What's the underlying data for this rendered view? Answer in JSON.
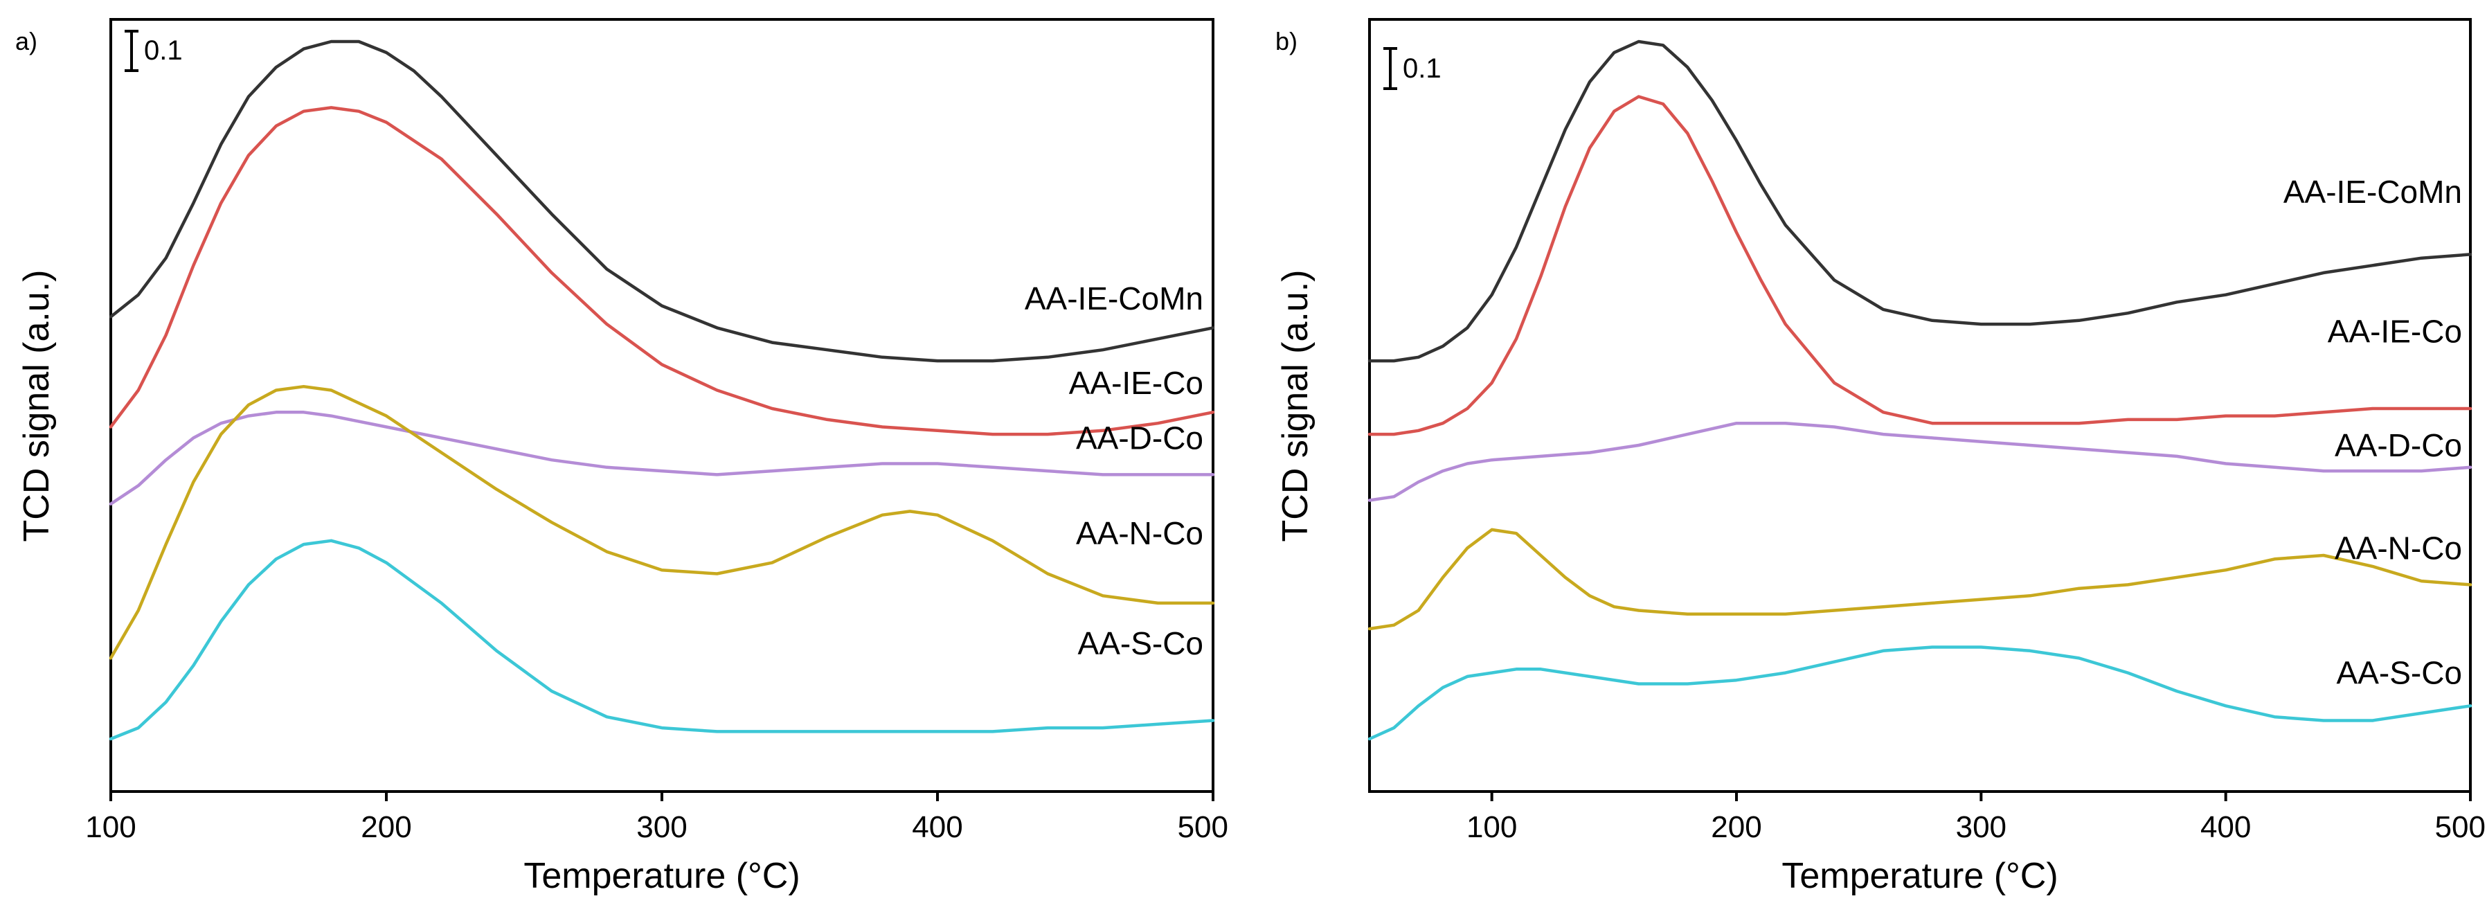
{
  "chart_data": [
    {
      "type": "line",
      "panel_label": "a)",
      "xlabel": "Temperature (°C)",
      "ylabel": "TCD signal (a.u.)",
      "xlim": [
        100,
        500
      ],
      "ylim": [
        0,
        2.0
      ],
      "xticks": [
        100,
        200,
        300,
        400,
        500
      ],
      "xtick_labels": [
        "100",
        "200",
        "300",
        "400",
        "500"
      ],
      "scale_bar": {
        "label": "0.1",
        "value": 0.1
      },
      "series": [
        {
          "name": "AA-IE-CoMn",
          "color": "#333333",
          "label_y": 1.27,
          "x": [
            100,
            110,
            120,
            130,
            140,
            150,
            160,
            170,
            180,
            190,
            200,
            210,
            220,
            240,
            260,
            280,
            300,
            320,
            340,
            360,
            380,
            400,
            420,
            440,
            460,
            480,
            500
          ],
          "y": [
            1.25,
            1.31,
            1.41,
            1.56,
            1.72,
            1.85,
            1.93,
            1.98,
            2.0,
            2.0,
            1.97,
            1.92,
            1.85,
            1.69,
            1.53,
            1.38,
            1.28,
            1.22,
            1.18,
            1.16,
            1.14,
            1.13,
            1.13,
            1.14,
            1.16,
            1.19,
            1.22
          ]
        },
        {
          "name": "AA-IE-Co",
          "color": "#d9534f",
          "label_y": 1.04,
          "x": [
            100,
            110,
            120,
            130,
            140,
            150,
            160,
            170,
            180,
            190,
            200,
            220,
            240,
            260,
            280,
            300,
            320,
            340,
            360,
            380,
            400,
            420,
            440,
            460,
            480,
            500
          ],
          "y": [
            0.95,
            1.05,
            1.2,
            1.39,
            1.56,
            1.69,
            1.77,
            1.81,
            1.82,
            1.81,
            1.78,
            1.68,
            1.53,
            1.37,
            1.23,
            1.12,
            1.05,
            1.0,
            0.97,
            0.95,
            0.94,
            0.93,
            0.93,
            0.94,
            0.96,
            0.99
          ]
        },
        {
          "name": "AA-D-Co",
          "color": "#b48cd6",
          "label_y": 0.89,
          "x": [
            100,
            110,
            120,
            130,
            140,
            150,
            160,
            170,
            180,
            200,
            220,
            240,
            260,
            280,
            300,
            320,
            340,
            360,
            380,
            400,
            420,
            440,
            460,
            480,
            500
          ],
          "y": [
            0.74,
            0.79,
            0.86,
            0.92,
            0.96,
            0.98,
            0.99,
            0.99,
            0.98,
            0.95,
            0.92,
            0.89,
            0.86,
            0.84,
            0.83,
            0.82,
            0.83,
            0.84,
            0.85,
            0.85,
            0.84,
            0.83,
            0.82,
            0.82,
            0.82
          ]
        },
        {
          "name": "AA-N-Co",
          "color": "#c8a91e",
          "label_y": 0.63,
          "x": [
            100,
            110,
            120,
            130,
            140,
            150,
            160,
            170,
            180,
            200,
            220,
            240,
            260,
            280,
            300,
            320,
            340,
            360,
            380,
            390,
            400,
            420,
            440,
            460,
            480,
            500
          ],
          "y": [
            0.32,
            0.45,
            0.63,
            0.8,
            0.93,
            1.01,
            1.05,
            1.06,
            1.05,
            0.98,
            0.88,
            0.78,
            0.69,
            0.61,
            0.56,
            0.55,
            0.58,
            0.65,
            0.71,
            0.72,
            0.71,
            0.64,
            0.55,
            0.49,
            0.47,
            0.47
          ]
        },
        {
          "name": "AA-S-Co",
          "color": "#3cc7d6",
          "label_y": 0.33,
          "x": [
            100,
            110,
            120,
            130,
            140,
            150,
            160,
            170,
            180,
            190,
            200,
            220,
            240,
            260,
            280,
            300,
            320,
            340,
            360,
            380,
            400,
            420,
            440,
            460,
            480,
            500
          ],
          "y": [
            0.1,
            0.13,
            0.2,
            0.3,
            0.42,
            0.52,
            0.59,
            0.63,
            0.64,
            0.62,
            0.58,
            0.47,
            0.34,
            0.23,
            0.16,
            0.13,
            0.12,
            0.12,
            0.12,
            0.12,
            0.12,
            0.12,
            0.13,
            0.13,
            0.14,
            0.15
          ]
        }
      ]
    },
    {
      "type": "line",
      "panel_label": "b)",
      "xlabel": "Temperature (°C)",
      "ylabel": "TCD signal (a.u.)",
      "xlim": [
        50,
        500
      ],
      "ylim": [
        0,
        2.0
      ],
      "xticks": [
        100,
        200,
        300,
        400,
        500
      ],
      "xtick_labels": [
        "100",
        "200",
        "300",
        "400",
        "500"
      ],
      "scale_bar": {
        "label": "0.1",
        "value": 0.1
      },
      "series": [
        {
          "name": "AA-IE-CoMn",
          "color": "#333333",
          "label_y": 1.56,
          "x": [
            50,
            60,
            70,
            80,
            90,
            100,
            110,
            120,
            130,
            140,
            150,
            160,
            170,
            180,
            190,
            200,
            210,
            220,
            240,
            260,
            280,
            300,
            320,
            340,
            360,
            380,
            400,
            420,
            440,
            460,
            480,
            500
          ],
          "y": [
            1.13,
            1.13,
            1.14,
            1.17,
            1.22,
            1.31,
            1.44,
            1.6,
            1.76,
            1.89,
            1.97,
            2.0,
            1.99,
            1.93,
            1.84,
            1.73,
            1.61,
            1.5,
            1.35,
            1.27,
            1.24,
            1.23,
            1.23,
            1.24,
            1.26,
            1.29,
            1.31,
            1.34,
            1.37,
            1.39,
            1.41,
            1.42
          ]
        },
        {
          "name": "AA-IE-Co",
          "color": "#d9534f",
          "label_y": 1.18,
          "x": [
            50,
            60,
            70,
            80,
            90,
            100,
            110,
            120,
            130,
            140,
            150,
            160,
            170,
            180,
            190,
            200,
            210,
            220,
            240,
            260,
            280,
            300,
            320,
            340,
            360,
            380,
            400,
            420,
            440,
            460,
            480,
            500
          ],
          "y": [
            0.93,
            0.93,
            0.94,
            0.96,
            1.0,
            1.07,
            1.19,
            1.36,
            1.55,
            1.71,
            1.81,
            1.85,
            1.83,
            1.75,
            1.62,
            1.48,
            1.35,
            1.23,
            1.07,
            0.99,
            0.96,
            0.96,
            0.96,
            0.96,
            0.97,
            0.97,
            0.98,
            0.98,
            0.99,
            1.0,
            1.0,
            1.0
          ]
        },
        {
          "name": "AA-D-Co",
          "color": "#b48cd6",
          "label_y": 0.87,
          "x": [
            50,
            60,
            70,
            80,
            90,
            100,
            120,
            140,
            160,
            180,
            200,
            220,
            240,
            260,
            280,
            300,
            320,
            340,
            360,
            380,
            400,
            420,
            440,
            460,
            480,
            500
          ],
          "y": [
            0.75,
            0.76,
            0.8,
            0.83,
            0.85,
            0.86,
            0.87,
            0.88,
            0.9,
            0.93,
            0.96,
            0.96,
            0.95,
            0.93,
            0.92,
            0.91,
            0.9,
            0.89,
            0.88,
            0.87,
            0.85,
            0.84,
            0.83,
            0.83,
            0.83,
            0.84
          ]
        },
        {
          "name": "AA-N-Co",
          "color": "#c8a91e",
          "label_y": 0.59,
          "x": [
            50,
            60,
            70,
            80,
            90,
            100,
            110,
            120,
            130,
            140,
            150,
            160,
            180,
            200,
            220,
            240,
            260,
            280,
            300,
            320,
            340,
            360,
            380,
            400,
            420,
            440,
            460,
            480,
            500
          ],
          "y": [
            0.4,
            0.41,
            0.45,
            0.54,
            0.62,
            0.67,
            0.66,
            0.6,
            0.54,
            0.49,
            0.46,
            0.45,
            0.44,
            0.44,
            0.44,
            0.45,
            0.46,
            0.47,
            0.48,
            0.49,
            0.51,
            0.52,
            0.54,
            0.56,
            0.59,
            0.6,
            0.57,
            0.53,
            0.52
          ]
        },
        {
          "name": "AA-S-Co",
          "color": "#3cc7d6",
          "label_y": 0.25,
          "x": [
            50,
            60,
            70,
            80,
            90,
            100,
            110,
            120,
            140,
            160,
            180,
            200,
            220,
            240,
            260,
            280,
            300,
            320,
            340,
            360,
            380,
            400,
            420,
            440,
            460,
            480,
            500
          ],
          "y": [
            0.1,
            0.13,
            0.19,
            0.24,
            0.27,
            0.28,
            0.29,
            0.29,
            0.27,
            0.25,
            0.25,
            0.26,
            0.28,
            0.31,
            0.34,
            0.35,
            0.35,
            0.34,
            0.32,
            0.28,
            0.23,
            0.19,
            0.16,
            0.15,
            0.15,
            0.17,
            0.19
          ]
        }
      ]
    }
  ]
}
